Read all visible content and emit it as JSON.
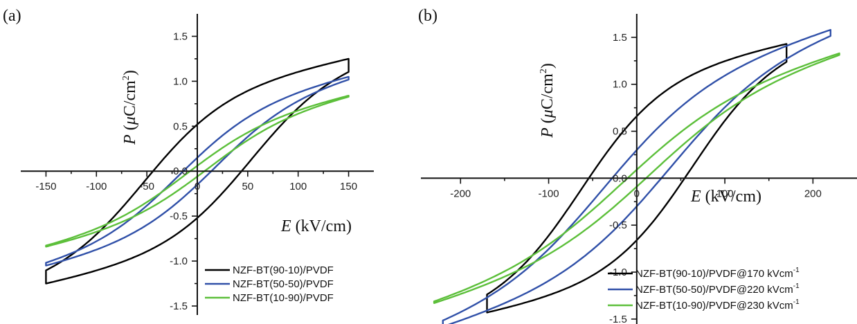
{
  "chart_data": [
    {
      "type": "line",
      "panel_label": "(a)",
      "xlabel": "E (kV/cm)",
      "ylabel": "P (μC/cm2)",
      "xlim": [
        -175,
        175
      ],
      "ylim": [
        -1.6,
        1.75
      ],
      "xticks": [
        -150,
        -100,
        -50,
        0,
        50,
        100,
        150
      ],
      "xtick_labels": [
        "-150",
        "-100",
        "-50",
        "0",
        "50",
        "100",
        "150"
      ],
      "yticks": [
        -1.5,
        -1.0,
        -0.5,
        0.0,
        0.5,
        1.0,
        1.5
      ],
      "ytick_labels": [
        "-1.5",
        "-1.0",
        "-0.5",
        "0.0",
        "0.5",
        "1.0",
        "1.5"
      ],
      "legend_position": "bottom-right",
      "series": [
        {
          "name": "NZF-BT(90-10)/PVDF",
          "color": "#000000",
          "loop": {
            "Emax": 150,
            "Pmax": 1.25,
            "Pr": 0.52,
            "Ec": 53
          },
          "x": [
            150,
            100,
            50,
            0,
            -50,
            -100,
            -150,
            -100,
            -50,
            0,
            50,
            100,
            150
          ],
          "y": [
            1.25,
            1.18,
            0.9,
            0.52,
            0.02,
            -0.58,
            -1.25,
            -1.18,
            -0.9,
            -0.52,
            -0.02,
            0.58,
            1.25
          ]
        },
        {
          "name": "NZF-BT(50-50)/PVDF",
          "color": "#3050a8",
          "loop": {
            "Emax": 150,
            "Pmax": 1.05,
            "Pr": 0.15,
            "Ec": 18
          },
          "x": [
            150,
            100,
            50,
            0,
            -50,
            -100,
            -150,
            -100,
            -50,
            0,
            50,
            100,
            150
          ],
          "y": [
            1.05,
            0.78,
            0.47,
            0.15,
            -0.22,
            -0.62,
            -1.05,
            -0.78,
            -0.47,
            -0.15,
            0.22,
            0.62,
            1.05
          ]
        },
        {
          "name": "NZF-BT(10-90)/PVDF",
          "color": "#5cbf3a",
          "loop": {
            "Emax": 150,
            "Pmax": 0.84,
            "Pr": 0.06,
            "Ec": 10
          },
          "x": [
            150,
            100,
            50,
            0,
            -50,
            -100,
            -150,
            -100,
            -50,
            0,
            50,
            100,
            150
          ],
          "y": [
            0.84,
            0.59,
            0.33,
            0.06,
            -0.24,
            -0.53,
            -0.84,
            -0.59,
            -0.33,
            -0.06,
            0.24,
            0.53,
            0.84
          ]
        }
      ]
    },
    {
      "type": "line",
      "panel_label": "(b)",
      "xlabel": "E (kV/cm)",
      "ylabel": "P (μC/cm2)",
      "xlim": [
        -245,
        250
      ],
      "ylim": [
        -1.7,
        1.75
      ],
      "xticks": [
        -200,
        -100,
        0,
        100,
        200
      ],
      "xtick_labels": [
        "-200",
        "-100",
        "0",
        "100",
        "200"
      ],
      "yticks": [
        -1.5,
        -1.0,
        -0.5,
        0.0,
        0.5,
        1.0,
        1.5
      ],
      "ytick_labels": [
        "-1.5",
        "-1.0",
        "-0.5",
        "0.0",
        "0.5",
        "1.0",
        "1.5"
      ],
      "legend_position": "bottom-right",
      "series": [
        {
          "name": "NZF-BT(90-10)/PVDF@170 kVcm",
          "name_superscript": "-1",
          "color": "#000000",
          "loop": {
            "Emax": 170,
            "Pmax": 1.43,
            "Pr": 0.66,
            "Ec": 63
          },
          "x": [
            170,
            100,
            50,
            0,
            -50,
            -100,
            -170,
            -100,
            -50,
            0,
            50,
            100,
            170
          ],
          "y": [
            1.43,
            1.4,
            1.15,
            0.66,
            0.05,
            -0.62,
            -1.43,
            -1.4,
            -1.15,
            -0.66,
            -0.05,
            0.62,
            1.43
          ]
        },
        {
          "name": "NZF-BT(50-50)/PVDF@220 kVcm",
          "name_superscript": "-1",
          "color": "#3050a8",
          "loop": {
            "Emax": 220,
            "Pmax": 1.58,
            "Pr": 0.3,
            "Ec": 37
          },
          "x": [
            220,
            100,
            50,
            0,
            -50,
            -100,
            -220,
            -100,
            -50,
            0,
            50,
            100,
            220
          ],
          "y": [
            1.58,
            0.98,
            0.66,
            0.3,
            -0.12,
            -0.55,
            -1.58,
            -0.98,
            -0.66,
            -0.3,
            0.12,
            0.55,
            1.58
          ]
        },
        {
          "name": "NZF-BT(10-90)/PVDF@230 kVcm",
          "name_superscript": "-1",
          "color": "#5cbf3a",
          "loop": {
            "Emax": 230,
            "Pmax": 1.33,
            "Pr": 0.09,
            "Ec": 15
          },
          "x": [
            230,
            100,
            50,
            0,
            -50,
            -100,
            -230,
            -100,
            -50,
            0,
            50,
            100,
            230
          ],
          "y": [
            1.33,
            0.67,
            0.4,
            0.09,
            -0.23,
            -0.54,
            -1.33,
            -0.67,
            -0.4,
            -0.09,
            0.23,
            0.54,
            1.33
          ]
        }
      ]
    }
  ]
}
